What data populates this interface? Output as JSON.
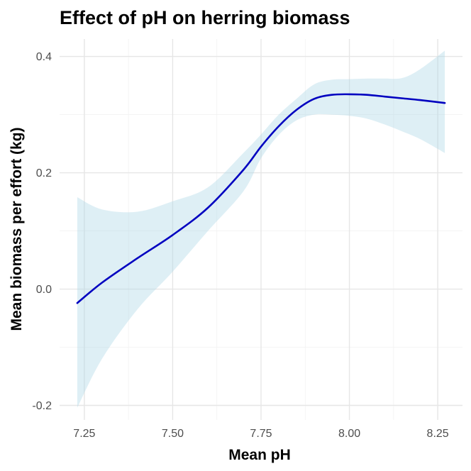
{
  "chart_data": {
    "type": "line",
    "title": "Effect of pH on herring biomass",
    "xlabel": "Mean pH",
    "ylabel": "Mean biomass per effort (kg)",
    "xlim": [
      7.18,
      8.32
    ],
    "ylim": [
      -0.225,
      0.43
    ],
    "x_ticks": [
      7.25,
      7.5,
      7.75,
      8.0,
      8.25
    ],
    "x_tick_labels": [
      "7.25",
      "7.50",
      "7.75",
      "8.00",
      "8.25"
    ],
    "y_ticks": [
      -0.2,
      0.0,
      0.2,
      0.4
    ],
    "y_tick_labels": [
      "-0.2",
      "0.0",
      "0.2",
      "0.4"
    ],
    "grid": true,
    "series": [
      {
        "type": "line",
        "color": "#0000c0",
        "x": [
          7.23,
          7.3,
          7.4,
          7.5,
          7.6,
          7.7,
          7.75,
          7.8,
          7.85,
          7.9,
          7.95,
          8.0,
          8.05,
          8.1,
          8.15,
          8.2,
          8.27
        ],
        "y": [
          -0.024,
          0.011,
          0.053,
          0.093,
          0.14,
          0.205,
          0.245,
          0.28,
          0.308,
          0.327,
          0.334,
          0.335,
          0.334,
          0.331,
          0.328,
          0.325,
          0.32
        ]
      },
      {
        "type": "ribbon",
        "color": "#add8e6",
        "x": [
          7.23,
          7.3,
          7.4,
          7.5,
          7.6,
          7.7,
          7.75,
          7.8,
          7.85,
          7.9,
          7.95,
          8.0,
          8.05,
          8.1,
          8.15,
          8.2,
          8.27
        ],
        "ymin": [
          -0.204,
          -0.12,
          -0.035,
          0.03,
          0.1,
          0.168,
          0.225,
          0.265,
          0.29,
          0.3,
          0.3,
          0.298,
          0.293,
          0.283,
          0.271,
          0.258,
          0.234
        ],
        "ymax": [
          0.158,
          0.137,
          0.133,
          0.151,
          0.175,
          0.234,
          0.266,
          0.3,
          0.327,
          0.352,
          0.36,
          0.361,
          0.362,
          0.362,
          0.363,
          0.378,
          0.41
        ]
      }
    ]
  }
}
